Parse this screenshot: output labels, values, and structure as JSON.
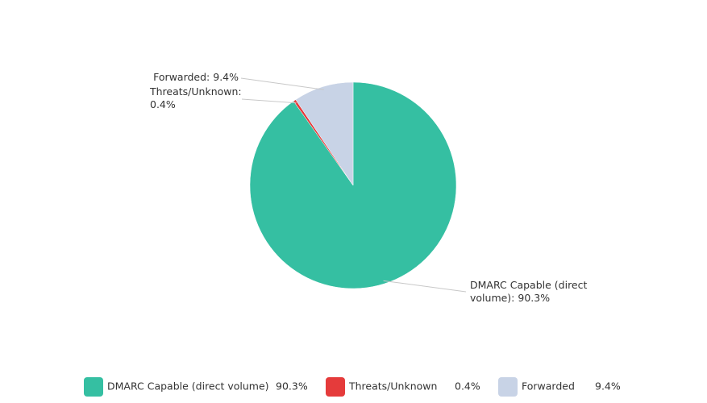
{
  "chart_data": {
    "type": "pie",
    "categories": [
      "DMARC Capable (direct volume)",
      "Threats/Unknown",
      "Forwarded"
    ],
    "values": [
      90.3,
      0.4,
      9.4
    ],
    "value_labels": [
      "90.3%",
      "0.4%",
      "9.4%"
    ],
    "colors": [
      "#35bfa2",
      "#e53b3b",
      "#c8d3e6"
    ],
    "annotations": [
      "DMARC Capable (direct volume): 90.3%",
      "Threats/Unknown: 0.4%",
      "Forwarded: 9.4%"
    ],
    "legend": "bottom"
  }
}
